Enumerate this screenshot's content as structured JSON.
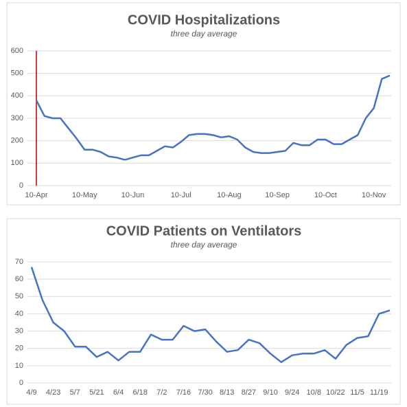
{
  "chart_data": [
    {
      "type": "line",
      "title": "COVID Hospitalizations",
      "subtitle": "three day average",
      "categories": [
        "10-Apr",
        null,
        null,
        null,
        null,
        null,
        "10-May",
        null,
        null,
        null,
        null,
        null,
        "10-Jun",
        null,
        null,
        null,
        null,
        null,
        "10-Jul",
        null,
        null,
        null,
        null,
        null,
        "10-Aug",
        null,
        null,
        null,
        null,
        null,
        "10-Sep",
        null,
        null,
        null,
        null,
        null,
        "10-Oct",
        null,
        null,
        null,
        null,
        null,
        "10-Nov",
        null,
        null
      ],
      "series": [
        {
          "name": "Hospitalizations",
          "color": "#4472c4",
          "values": [
            380,
            310,
            300,
            300,
            255,
            210,
            160,
            160,
            150,
            130,
            125,
            115,
            125,
            135,
            135,
            155,
            175,
            170,
            195,
            225,
            230,
            230,
            225,
            215,
            220,
            205,
            170,
            150,
            145,
            145,
            150,
            155,
            190,
            180,
            180,
            205,
            205,
            185,
            185,
            205,
            225,
            300,
            345,
            475,
            490
          ]
        }
      ],
      "ylim": [
        0,
        600
      ],
      "yticks": [
        0,
        100,
        200,
        300,
        400,
        500,
        600
      ],
      "grid": true
    },
    {
      "type": "line",
      "title": "COVID Patients on Ventilators",
      "subtitle": "three day average",
      "categories": [
        "4/9",
        null,
        "4/23",
        null,
        "5/7",
        null,
        "5/21",
        null,
        "6/4",
        null,
        "6/18",
        null,
        "7/2",
        null,
        "7/16",
        null,
        "7/30",
        null,
        "8/13",
        null,
        "8/27",
        null,
        "9/10",
        null,
        "9/24",
        null,
        "10/8",
        null,
        "10/22",
        null,
        "11/5",
        null,
        "11/19",
        null
      ],
      "series": [
        {
          "name": "Ventilators",
          "color": "#4472c4",
          "values": [
            67,
            48,
            35,
            30,
            21,
            21,
            15,
            18,
            13,
            18,
            18,
            28,
            25,
            25,
            33,
            30,
            31,
            24,
            18,
            19,
            25,
            23,
            17,
            12,
            16,
            17,
            17,
            19,
            14,
            22,
            26,
            27,
            40,
            42
          ]
        }
      ],
      "ylim": [
        0,
        70
      ],
      "yticks": [
        0,
        10,
        20,
        30,
        40,
        50,
        60,
        70
      ],
      "grid": true
    }
  ]
}
